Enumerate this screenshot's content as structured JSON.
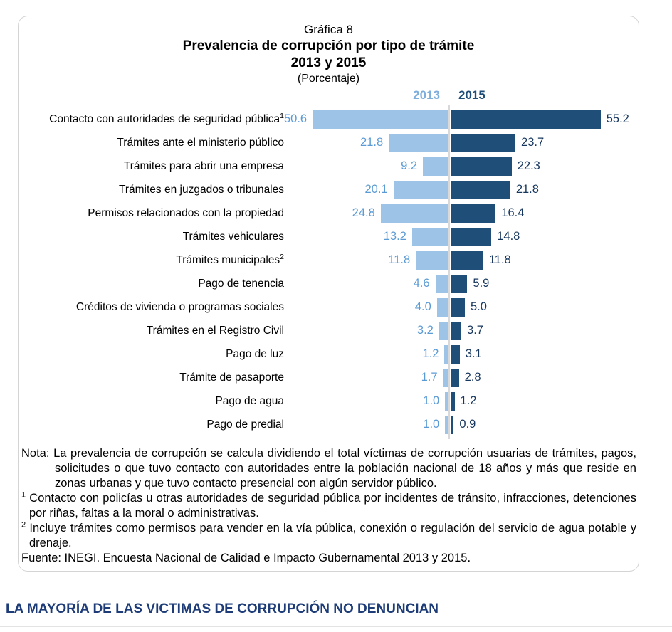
{
  "chart": {
    "heading": "Gráfica 8",
    "title": "Prevalencia de corrupción por tipo de trámite",
    "subtitle": "2013 y 2015",
    "unit_label": "(Porcentaje)",
    "legend": {
      "year_left": "2013",
      "year_right": "2015"
    },
    "colors": {
      "bar_2013": "#9dc3e6",
      "bar_2015": "#1f4e79",
      "value_text_2013": "#5b9bd5",
      "value_text_2015": "#17375e",
      "legend_2013": "#7eaedc",
      "legend_2015": "#1f4e79",
      "axis_line": "#d9d9d9",
      "box_border": "#d4d4d4",
      "section_heading": "#1d3c78"
    }
  },
  "chart_data": {
    "type": "bar",
    "orientation": "horizontal-diverging",
    "title": "Prevalencia de corrupción por tipo de trámite, 2013 y 2015 (Porcentaje)",
    "categories": [
      "Contacto con autoridades de seguridad pública",
      "Trámites ante el ministerio público",
      "Trámites para abrir una empresa",
      "Trámites en juzgados o tribunales",
      "Permisos relacionados con la propiedad",
      "Trámites vehiculares",
      "Trámites municipales",
      "Pago de tenencia",
      "Créditos de vivienda o programas sociales",
      "Trámites en el Registro Civil",
      "Pago de luz",
      "Trámite de pasaporte",
      "Pago de agua",
      "Pago de predial"
    ],
    "category_superscripts": [
      "1",
      "",
      "",
      "",
      "",
      "",
      "2",
      "",
      "",
      "",
      "",
      "",
      "",
      ""
    ],
    "series": [
      {
        "name": "2013",
        "values": [
          50.6,
          21.8,
          9.2,
          20.1,
          24.8,
          13.2,
          11.8,
          4.6,
          4.0,
          3.2,
          1.2,
          1.7,
          1.0,
          1.0
        ]
      },
      {
        "name": "2015",
        "values": [
          55.2,
          23.7,
          22.3,
          21.8,
          16.4,
          14.8,
          11.8,
          5.9,
          5.0,
          3.7,
          3.1,
          2.8,
          1.2,
          0.9
        ]
      }
    ],
    "value_format": "one-decimal",
    "xlim": [
      0,
      58
    ],
    "legend_position": "top-center",
    "grid": false
  },
  "notes": {
    "nota_label": "Nota:",
    "nota_text": "La prevalencia de corrupción se calcula dividiendo el total víctimas de corrupción usuarias de trámites, pagos, solicitudes o que tuvo contacto con autoridades entre la población nacional de 18 años y más que reside en zonas urbanas y que tuvo contacto presencial con algún servidor público.",
    "footnote1_marker": "1",
    "footnote1_text": "Contacto con policías u otras autoridades de seguridad pública por incidentes de tránsito, infracciones, detenciones por riñas, faltas a la moral o administrativas.",
    "footnote2_marker": "2",
    "footnote2_text": "Incluye trámites como permisos para vender en la vía pública, conexión o regulación del servicio de agua potable y drenaje.",
    "fuente": "Fuente: INEGI. Encuesta Nacional de Calidad e Impacto Gubernamental 2013 y 2015."
  },
  "section_heading": "LA MAYORÍA DE LAS VICTIMAS DE CORRUPCIÓN NO DENUNCIAN"
}
